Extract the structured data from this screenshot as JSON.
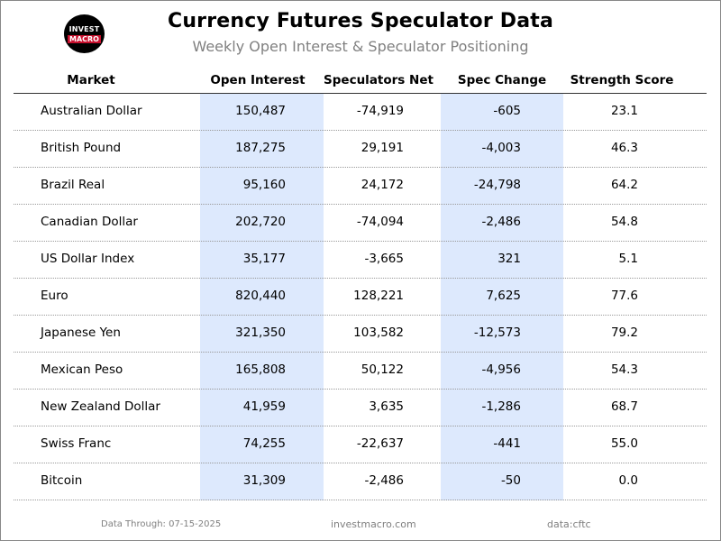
{
  "header": {
    "title": "Currency Futures Speculator Data",
    "subtitle": "Weekly Open Interest & Speculator Positioning",
    "logo_top": "INVEST",
    "logo_bottom": "MACRO"
  },
  "colors": {
    "highlight_column": "#dde9fd",
    "logo_red": "#c8102e",
    "muted_text": "#808080"
  },
  "chart_data": {
    "type": "table",
    "columns": [
      "Market",
      "Open Interest",
      "Speculators Net",
      "Spec Change",
      "Strength Score"
    ],
    "highlighted_columns": [
      "Open Interest",
      "Spec Change"
    ],
    "rows": [
      [
        "Australian Dollar",
        "150,487",
        "-74,919",
        "-605",
        "23.1"
      ],
      [
        "British Pound",
        "187,275",
        "29,191",
        "-4,003",
        "46.3"
      ],
      [
        "Brazil Real",
        "95,160",
        "24,172",
        "-24,798",
        "64.2"
      ],
      [
        "Canadian Dollar",
        "202,720",
        "-74,094",
        "-2,486",
        "54.8"
      ],
      [
        "US Dollar Index",
        "35,177",
        "-3,665",
        "321",
        "5.1"
      ],
      [
        "Euro",
        "820,440",
        "128,221",
        "7,625",
        "77.6"
      ],
      [
        "Japanese Yen",
        "321,350",
        "103,582",
        "-12,573",
        "79.2"
      ],
      [
        "Mexican Peso",
        "165,808",
        "50,122",
        "-4,956",
        "54.3"
      ],
      [
        "New Zealand Dollar",
        "41,959",
        "3,635",
        "-1,286",
        "68.7"
      ],
      [
        "Swiss Franc",
        "74,255",
        "-22,637",
        "-441",
        "55.0"
      ],
      [
        "Bitcoin",
        "31,309",
        "-2,486",
        "-50",
        "0.0"
      ]
    ]
  },
  "footer": {
    "date_note": "Data Through: 07-15-2025",
    "site": "investmacro.com",
    "source": "data:cftc"
  }
}
